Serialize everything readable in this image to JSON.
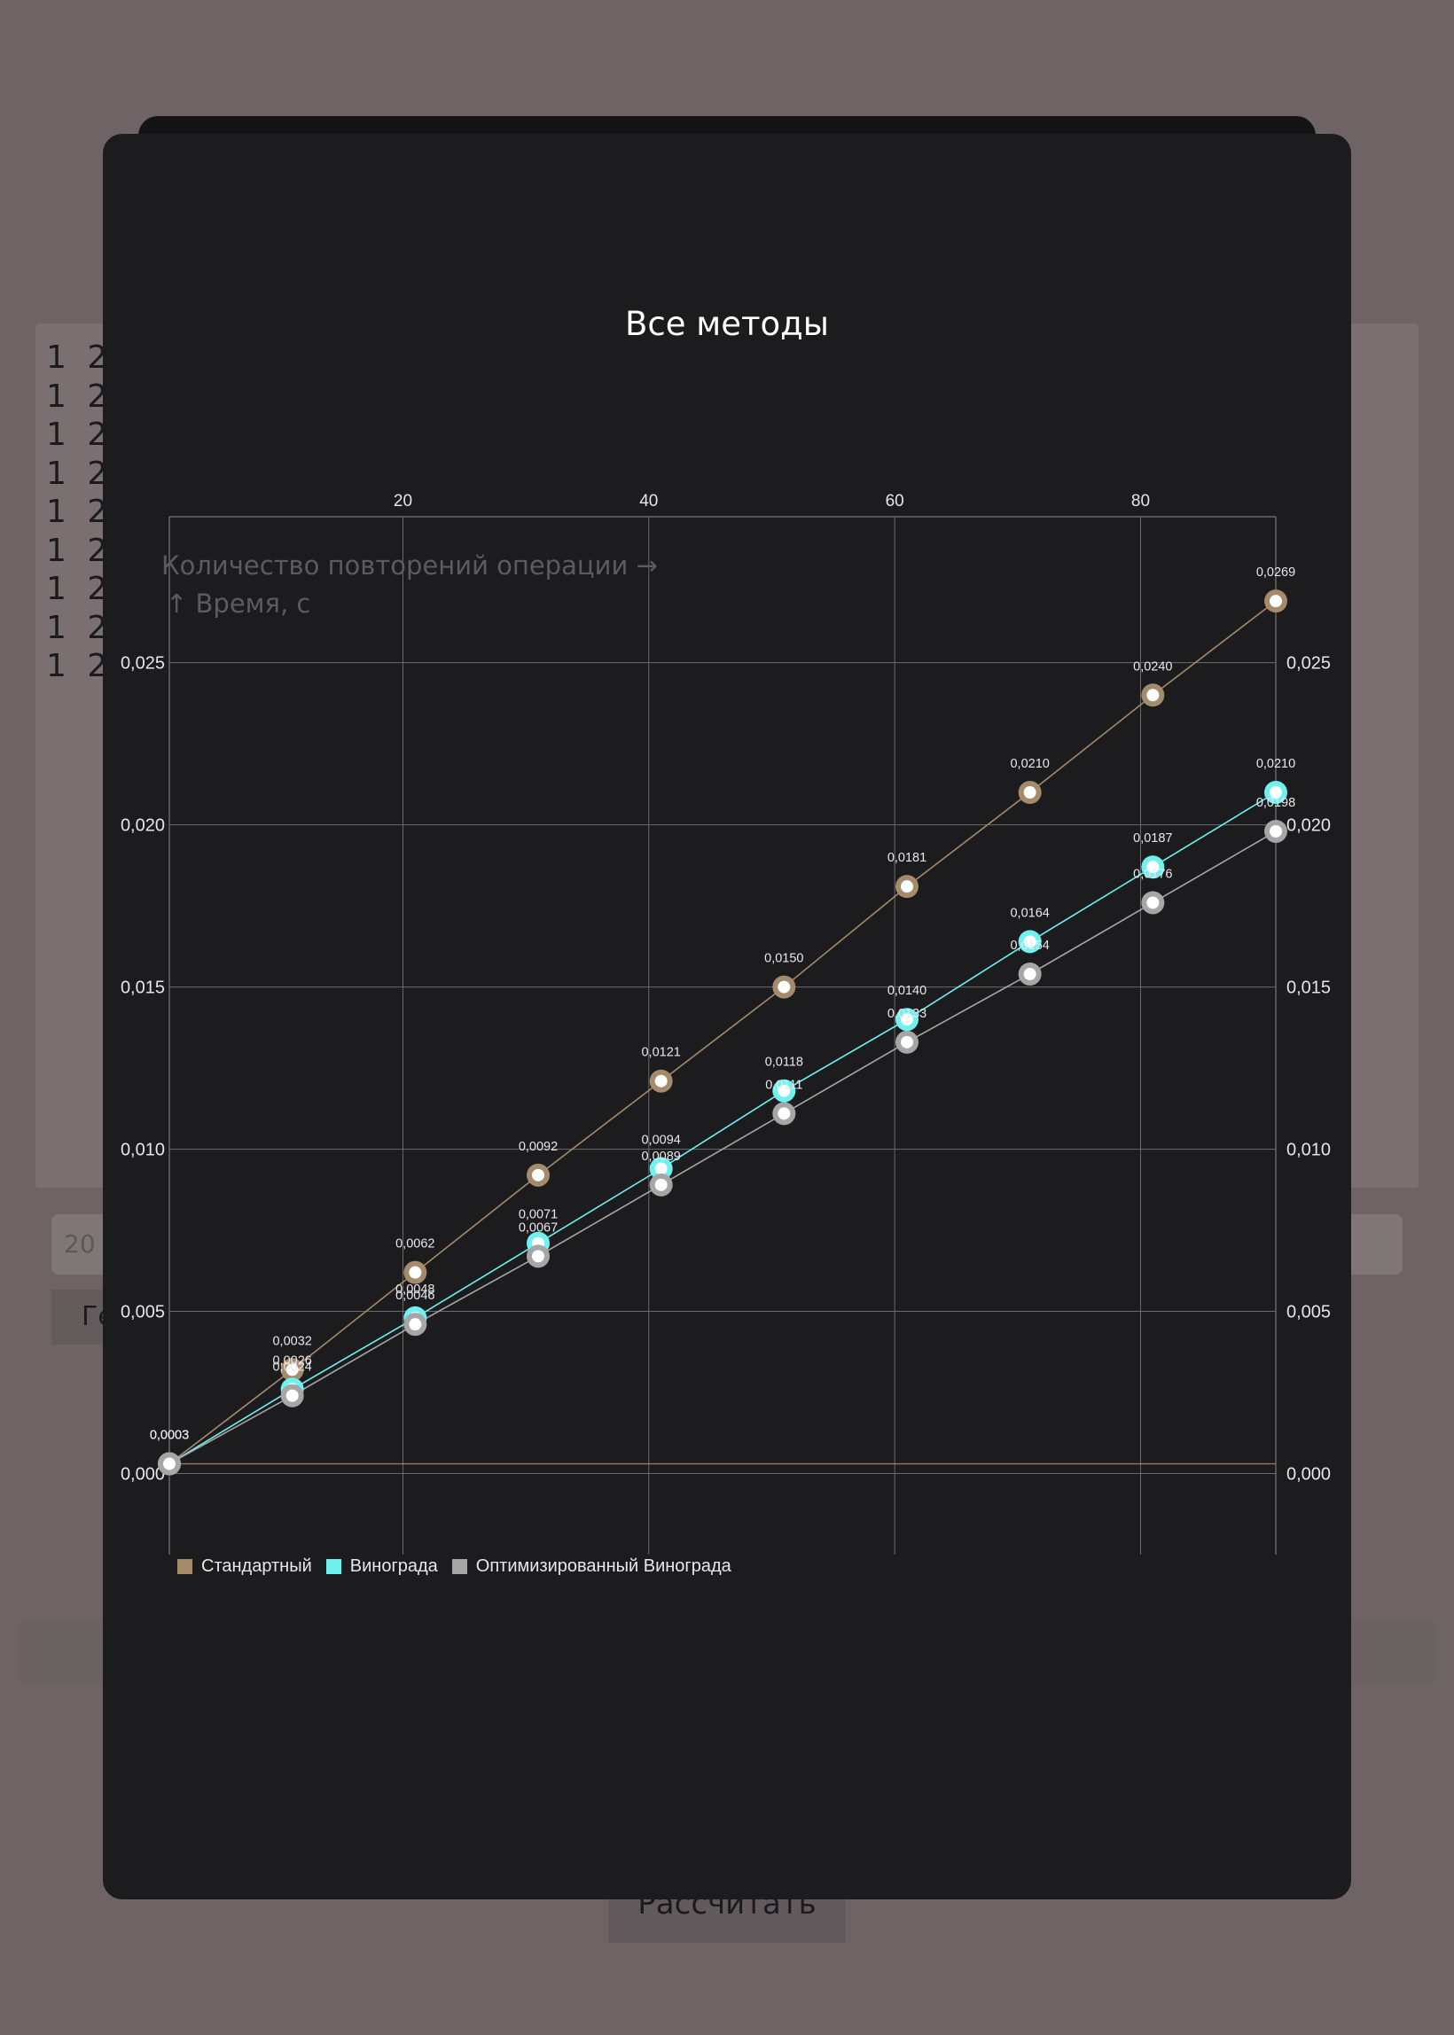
{
  "background": {
    "rows": [
      "1 2 3",
      "1 2 3",
      "1 2 3",
      "1 2 3",
      "1 2 3",
      "1 2 3",
      "1 2 3",
      "1 2 3",
      "1 2 3"
    ],
    "input_value": "20",
    "generate_label": "Ге",
    "calculate_label": "Рассчитать"
  },
  "modal": {
    "title": "Все методы"
  },
  "chart_data": {
    "type": "line",
    "title": "Все методы",
    "xlabel": "Количество повторений операции →",
    "ylabel": "↑ Время, с",
    "x": [
      1,
      11,
      21,
      31,
      41,
      51,
      61,
      71,
      81,
      91
    ],
    "xlim": [
      1,
      91
    ],
    "ylim": [
      -0.0025,
      0.0295
    ],
    "x_ticks": [
      20,
      40,
      60,
      80
    ],
    "x_tick_labels": [
      "20",
      "40",
      "60",
      "80"
    ],
    "y_ticks": [
      0,
      0.005,
      0.01,
      0.015,
      0.02,
      0.025
    ],
    "y_tick_labels": [
      "0,000",
      "0,005",
      "0,010",
      "0,015",
      "0,020",
      "0,025"
    ],
    "grid": true,
    "legend_position": "bottom-left",
    "series": [
      {
        "name": "Стандартный",
        "color": "#a38b6c",
        "values": [
          0.0003,
          0.0032,
          0.0062,
          0.0092,
          0.0121,
          0.015,
          0.0181,
          0.021,
          0.024,
          0.0269
        ],
        "labels": [
          "0,0003",
          "0,0032",
          "0,0062",
          "0,0092",
          "0,0121",
          "0,0150",
          "0,0181",
          "0,0210",
          "0,0240",
          "0,0269"
        ]
      },
      {
        "name": "Винограда",
        "color": "#6ff2ef",
        "values": [
          0.0003,
          0.0026,
          0.0048,
          0.0071,
          0.0094,
          0.0118,
          0.014,
          0.0164,
          0.0187,
          0.021
        ],
        "labels": [
          "0,0003",
          "0,0026",
          "0,0048",
          "0,0071",
          "0,0094",
          "0,0118",
          "0,0140",
          "0,0164",
          "0,0187",
          "0,0210"
        ]
      },
      {
        "name": "Оптимизированный Винограда",
        "color": "#a6a6a6",
        "values": [
          0.0003,
          0.0024,
          0.0046,
          0.0067,
          0.0089,
          0.0111,
          0.0133,
          0.0154,
          0.0176,
          0.0198
        ],
        "labels": [
          "0,0003",
          "0,0024",
          "0,0046",
          "0,0067",
          "0,0089",
          "0,0111",
          "0,0133",
          "0,0154",
          "0,0176",
          "0,0198"
        ]
      }
    ],
    "baseline": {
      "value": 0.0003,
      "color": "#a38b6c"
    }
  }
}
